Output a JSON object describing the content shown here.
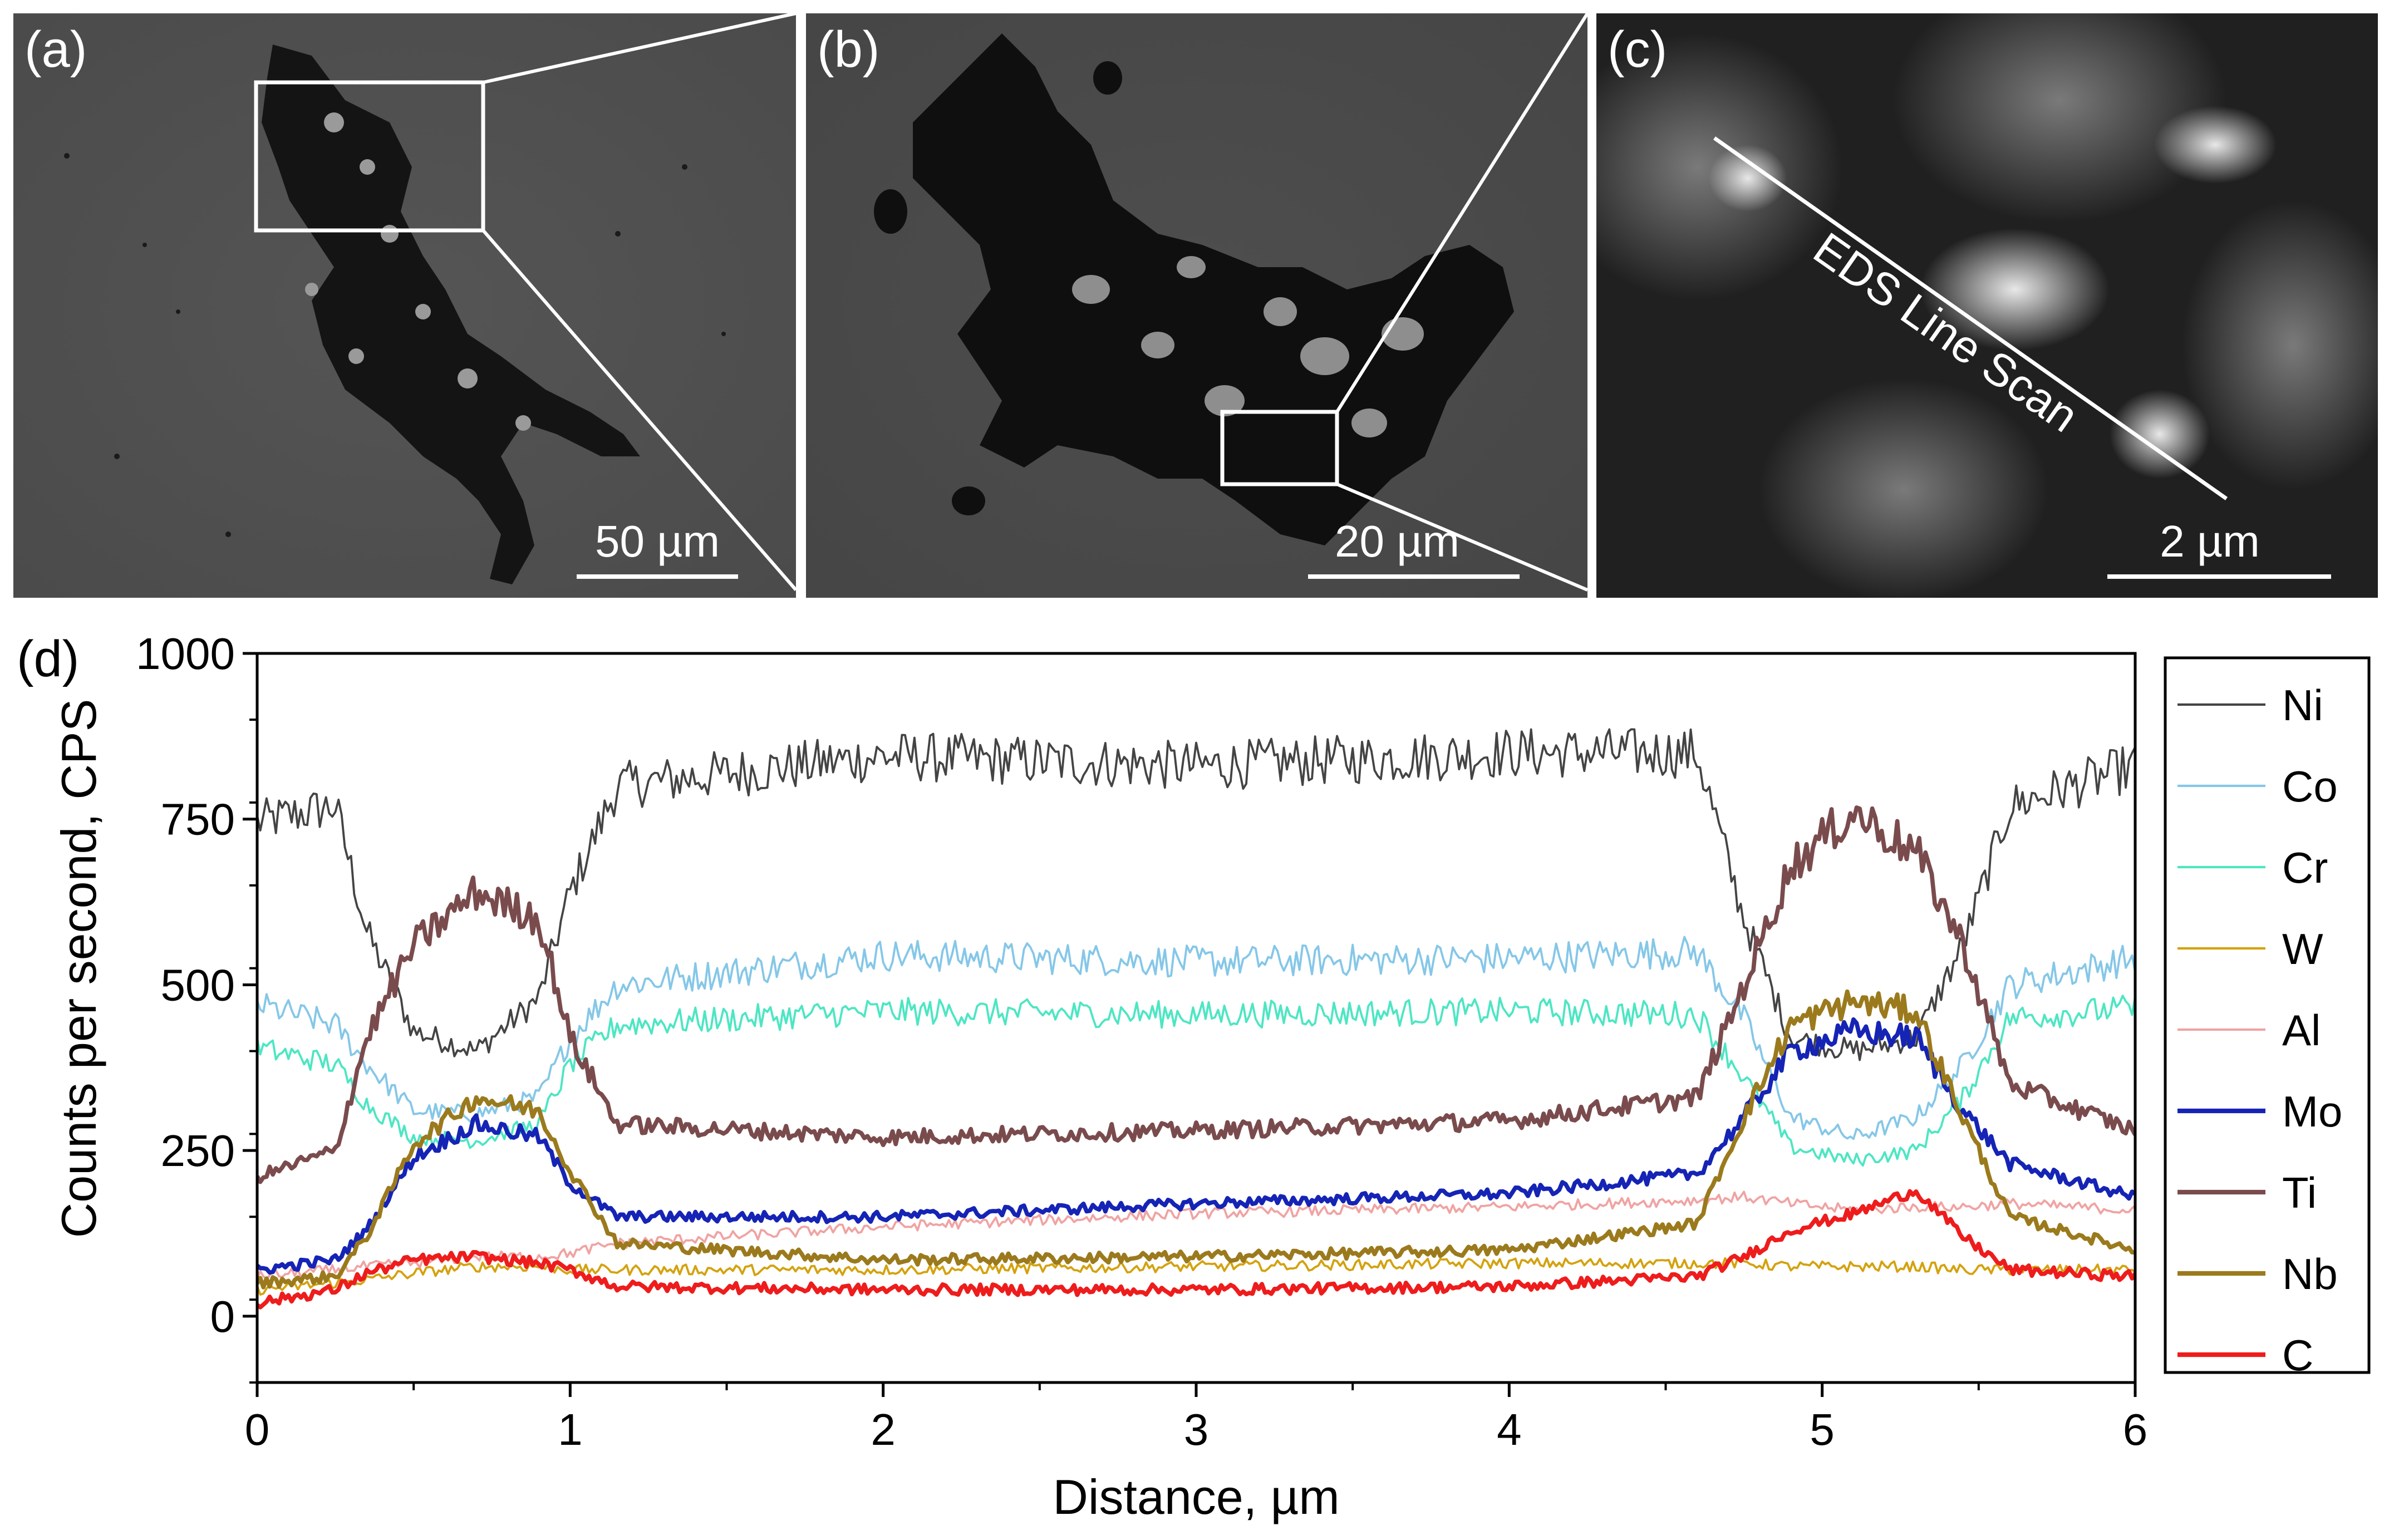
{
  "panels": [
    {
      "label": "(a)",
      "scale_bar": "50 µm"
    },
    {
      "label": "(b)",
      "scale_bar": "20 µm"
    },
    {
      "label": "(c)",
      "scale_bar": "2 µm",
      "annotation": "EDS Line Scan"
    }
  ],
  "chart_data": {
    "type": "line",
    "panel_label": "(d)",
    "xlabel": "Distance, µm",
    "ylabel": "Counts per second, CPS",
    "xlim": [
      0,
      6
    ],
    "ylim": [
      -100,
      1000
    ],
    "x_ticks": [
      0,
      1,
      2,
      3,
      4,
      5,
      6
    ],
    "x_tick_labels": [
      "0",
      "1",
      "2",
      "3",
      "4",
      "5",
      "6"
    ],
    "y_ticks": [
      0,
      250,
      500,
      750,
      1000
    ],
    "y_tick_labels": [
      "0",
      "250",
      "500",
      "750",
      "1000"
    ],
    "grid": false,
    "legend_position": "right",
    "x": [
      0,
      0.25,
      0.35,
      0.5,
      0.7,
      0.9,
      1.0,
      1.15,
      2,
      3,
      4,
      4.6,
      4.75,
      4.9,
      5.1,
      5.3,
      5.45,
      5.6,
      6
    ],
    "series": [
      {
        "name": "Ni",
        "color": "#444444",
        "width": 1.6,
        "values": [
          745,
          770,
          580,
          430,
          400,
          480,
          640,
          800,
          845,
          830,
          850,
          850,
          600,
          420,
          400,
          420,
          560,
          770,
          830
        ]
      },
      {
        "name": "Co",
        "color": "#85c7e8",
        "width": 1.6,
        "values": [
          470,
          440,
          380,
          310,
          305,
          330,
          420,
          500,
          545,
          535,
          540,
          550,
          450,
          300,
          270,
          300,
          380,
          500,
          540
        ]
      },
      {
        "name": "Cr",
        "color": "#4de6c3",
        "width": 1.6,
        "values": [
          405,
          380,
          320,
          270,
          265,
          290,
          380,
          440,
          460,
          455,
          460,
          455,
          360,
          255,
          235,
          250,
          330,
          450,
          465
        ]
      },
      {
        "name": "W",
        "color": "#d4a20e",
        "width": 1.6,
        "values": [
          40,
          50,
          55,
          65,
          75,
          75,
          70,
          70,
          70,
          75,
          80,
          80,
          80,
          75,
          75,
          75,
          70,
          70,
          70
        ]
      },
      {
        "name": "Al",
        "color": "#f0a3a3",
        "width": 1.6,
        "values": [
          60,
          70,
          75,
          80,
          90,
          90,
          95,
          110,
          135,
          155,
          165,
          175,
          180,
          170,
          160,
          165,
          165,
          170,
          160
        ]
      },
      {
        "name": "Mo",
        "color": "#1524b5",
        "width": 3.2,
        "values": [
          70,
          85,
          130,
          240,
          290,
          270,
          200,
          150,
          150,
          170,
          185,
          215,
          300,
          400,
          430,
          420,
          310,
          230,
          180
        ]
      },
      {
        "name": "Ti",
        "color": "#7a4b4d",
        "width": 3.2,
        "values": [
          210,
          250,
          420,
          560,
          640,
          600,
          420,
          290,
          270,
          280,
          295,
          330,
          500,
          680,
          760,
          700,
          560,
          350,
          280
        ]
      },
      {
        "name": "Nb",
        "color": "#9b7a1d",
        "width": 3.2,
        "values": [
          50,
          60,
          120,
          260,
          330,
          310,
          220,
          110,
          85,
          90,
          100,
          140,
          300,
          440,
          475,
          460,
          300,
          150,
          100
        ]
      },
      {
        "name": "C",
        "color": "#ee1c1c",
        "width": 3.2,
        "values": [
          20,
          40,
          65,
          85,
          90,
          80,
          70,
          45,
          40,
          40,
          45,
          60,
          90,
          130,
          155,
          190,
          120,
          70,
          60
        ]
      }
    ]
  }
}
